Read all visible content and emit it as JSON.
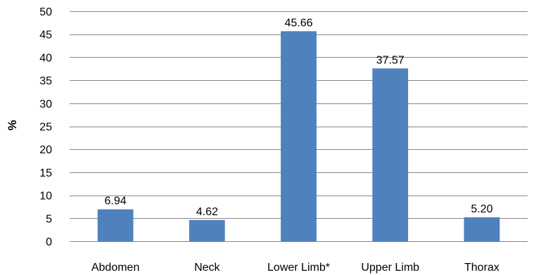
{
  "chart_data": {
    "type": "bar",
    "categories": [
      "Abdomen",
      "Neck",
      "Lower Limb*",
      "Upper Limb",
      "Thorax"
    ],
    "values": [
      6.94,
      4.62,
      45.66,
      37.57,
      5.2
    ],
    "data_labels": [
      "6.94",
      "4.62",
      "45.66",
      "37.57",
      "5.20"
    ],
    "title": "",
    "xlabel": "",
    "ylabel": "%",
    "ylim": [
      0,
      50
    ],
    "yticks": [
      0,
      5,
      10,
      15,
      20,
      25,
      30,
      35,
      40,
      45,
      50
    ],
    "grid": true,
    "legend": "none",
    "bar_color": "#4F81BD",
    "grid_color": "#868686"
  }
}
